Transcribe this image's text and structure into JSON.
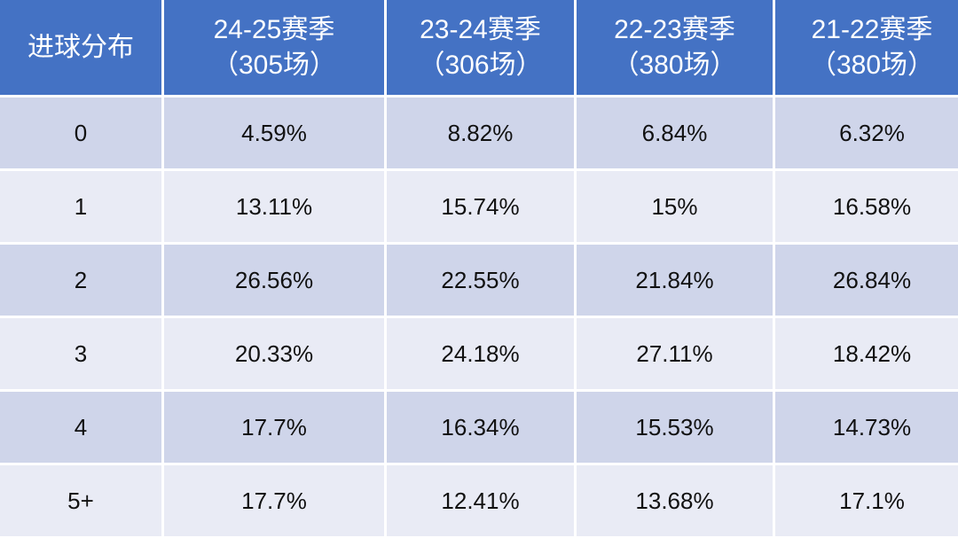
{
  "table": {
    "header": [
      [
        "进球分布"
      ],
      [
        "24-25赛季",
        "（305场）"
      ],
      [
        "23-24赛季",
        "（306场）"
      ],
      [
        "22-23赛季",
        "（380场）"
      ],
      [
        "21-22赛季",
        "（380场）"
      ]
    ],
    "rows": [
      [
        "0",
        "4.59%",
        "8.82%",
        "6.84%",
        "6.32%"
      ],
      [
        "1",
        "13.11%",
        "15.74%",
        "15%",
        "16.58%"
      ],
      [
        "2",
        "26.56%",
        "22.55%",
        "21.84%",
        "26.84%"
      ],
      [
        "3",
        "20.33%",
        "24.18%",
        "27.11%",
        "18.42%"
      ],
      [
        "4",
        "17.7%",
        "16.34%",
        "15.53%",
        "14.73%"
      ],
      [
        "5+",
        "17.7%",
        "12.41%",
        "13.68%",
        "17.1%"
      ]
    ]
  }
}
